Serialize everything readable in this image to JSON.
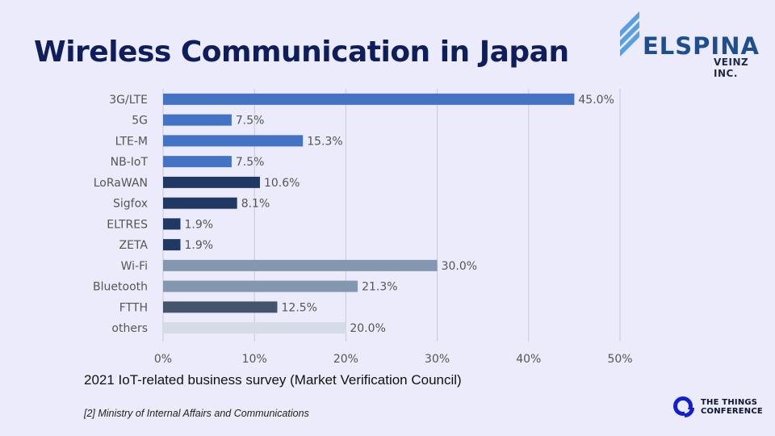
{
  "page": {
    "title": "Wireless Communication in Japan",
    "caption": "2021 IoT-related business survey (Market Verification Council)",
    "source": "[2] Ministry of Internal Affairs and Communications"
  },
  "brand": {
    "name": "ELSPINA",
    "sub": "VEINZ INC."
  },
  "conference": {
    "line1": "THE THINGS",
    "line2": "CONFERENCE"
  },
  "colors": {
    "background": "#ecebfb",
    "title": "#0e1e5b",
    "brand": "#1d4e8f",
    "brand_stripes": "#5aa0e0",
    "conference_logo": "#1020d0"
  },
  "chart_data": {
    "type": "bar",
    "orientation": "horizontal",
    "categories": [
      "3G/LTE",
      "5G",
      "LTE-M",
      "NB-IoT",
      "LoRaWAN",
      "Sigfox",
      "ELTRES",
      "ZETA",
      "Wi-Fi",
      "Bluetooth",
      "FTTH",
      "others"
    ],
    "values": [
      45.0,
      7.5,
      15.3,
      7.5,
      10.6,
      8.1,
      1.9,
      1.9,
      30.0,
      21.3,
      12.5,
      20.0
    ],
    "value_labels": [
      "45.0%",
      "7.5%",
      "15.3%",
      "7.5%",
      "10.6%",
      "8.1%",
      "1.9%",
      "1.9%",
      "30.0%",
      "21.3%",
      "12.5%",
      "20.0%"
    ],
    "bar_colors": [
      "#4472c4",
      "#4472c4",
      "#4472c4",
      "#4472c4",
      "#203864",
      "#203864",
      "#203864",
      "#203864",
      "#8497b0",
      "#8497b0",
      "#44546a",
      "#d6dce5"
    ],
    "x_ticks": [
      "0%",
      "10%",
      "20%",
      "30%",
      "40%",
      "50%"
    ],
    "xlim": [
      0,
      50
    ],
    "grid": true,
    "xlabel": "",
    "ylabel": ""
  }
}
